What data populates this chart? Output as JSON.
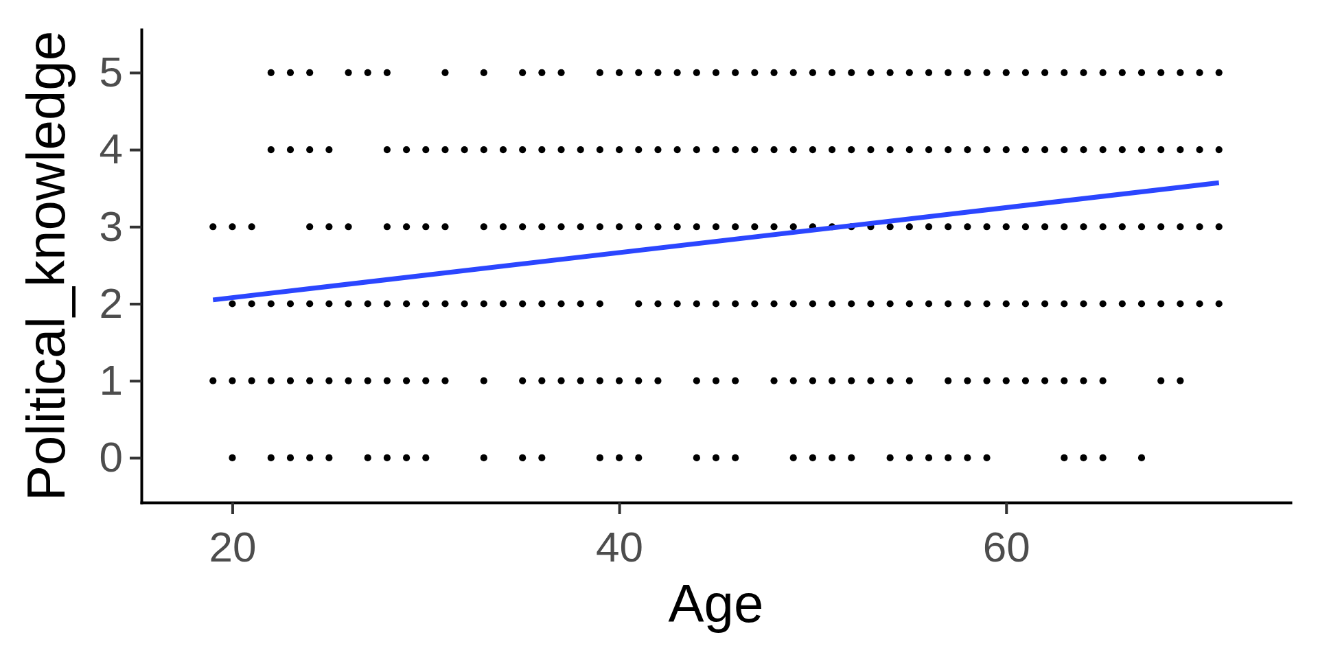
{
  "chart_data": {
    "type": "scatter",
    "xlabel": "Age",
    "ylabel": "Political_knowledge",
    "xlim": [
      15.3,
      74.7
    ],
    "ylim": [
      -0.58,
      5.56
    ],
    "xticks": [
      20,
      40,
      60
    ],
    "yticks": [
      0,
      1,
      2,
      3,
      4,
      5
    ],
    "series": [
      {
        "color": "#000000",
        "marker": "circle",
        "x": [
          22,
          23,
          24,
          26,
          27,
          28,
          31,
          33,
          35,
          36,
          37,
          39,
          40,
          41,
          42,
          43,
          44,
          45,
          46,
          47,
          48,
          49,
          50,
          51,
          52,
          53,
          54,
          55,
          56,
          57,
          58,
          59,
          60,
          61,
          62,
          63,
          64,
          65,
          66,
          67,
          68,
          69,
          70,
          71,
          22,
          23,
          24,
          25,
          28,
          29,
          30,
          31,
          32,
          33,
          34,
          35,
          36,
          37,
          38,
          39,
          40,
          41,
          42,
          43,
          44,
          45,
          46,
          47,
          48,
          49,
          50,
          51,
          52,
          53,
          54,
          55,
          56,
          57,
          58,
          59,
          60,
          61,
          62,
          63,
          64,
          65,
          66,
          67,
          68,
          69,
          70,
          71,
          19,
          20,
          21,
          24,
          25,
          26,
          28,
          29,
          30,
          31,
          33,
          34,
          35,
          36,
          37,
          38,
          39,
          40,
          41,
          42,
          43,
          44,
          45,
          46,
          47,
          48,
          49,
          50,
          51,
          52,
          53,
          54,
          55,
          56,
          57,
          58,
          59,
          60,
          61,
          62,
          63,
          64,
          65,
          66,
          67,
          68,
          69,
          70,
          71,
          20,
          21,
          22,
          23,
          24,
          25,
          26,
          27,
          28,
          29,
          30,
          31,
          32,
          33,
          34,
          35,
          36,
          37,
          38,
          39,
          41,
          42,
          43,
          44,
          45,
          46,
          47,
          48,
          49,
          50,
          51,
          52,
          53,
          54,
          55,
          56,
          57,
          58,
          59,
          60,
          61,
          62,
          63,
          64,
          65,
          66,
          67,
          68,
          69,
          70,
          71,
          19,
          20,
          21,
          22,
          23,
          24,
          25,
          26,
          27,
          28,
          29,
          30,
          31,
          33,
          35,
          36,
          37,
          38,
          39,
          40,
          41,
          42,
          44,
          45,
          46,
          48,
          49,
          50,
          51,
          52,
          53,
          54,
          55,
          57,
          58,
          59,
          60,
          61,
          62,
          63,
          64,
          65,
          68,
          69,
          20,
          22,
          23,
          24,
          25,
          27,
          28,
          29,
          30,
          33,
          35,
          36,
          39,
          40,
          41,
          44,
          45,
          46,
          49,
          50,
          51,
          52,
          54,
          55,
          56,
          57,
          58,
          59,
          63,
          64,
          65,
          67
        ],
        "values": [
          5,
          5,
          5,
          5,
          5,
          5,
          5,
          5,
          5,
          5,
          5,
          5,
          5,
          5,
          5,
          5,
          5,
          5,
          5,
          5,
          5,
          5,
          5,
          5,
          5,
          5,
          5,
          5,
          5,
          5,
          5,
          5,
          5,
          5,
          5,
          5,
          5,
          5,
          5,
          5,
          5,
          5,
          5,
          5,
          4,
          4,
          4,
          4,
          4,
          4,
          4,
          4,
          4,
          4,
          4,
          4,
          4,
          4,
          4,
          4,
          4,
          4,
          4,
          4,
          4,
          4,
          4,
          4,
          4,
          4,
          4,
          4,
          4,
          4,
          4,
          4,
          4,
          4,
          4,
          4,
          4,
          4,
          4,
          4,
          4,
          4,
          4,
          4,
          4,
          4,
          4,
          4,
          3,
          3,
          3,
          3,
          3,
          3,
          3,
          3,
          3,
          3,
          3,
          3,
          3,
          3,
          3,
          3,
          3,
          3,
          3,
          3,
          3,
          3,
          3,
          3,
          3,
          3,
          3,
          3,
          3,
          3,
          3,
          3,
          3,
          3,
          3,
          3,
          3,
          3,
          3,
          3,
          3,
          3,
          3,
          3,
          3,
          3,
          3,
          3,
          3,
          2,
          2,
          2,
          2,
          2,
          2,
          2,
          2,
          2,
          2,
          2,
          2,
          2,
          2,
          2,
          2,
          2,
          2,
          2,
          2,
          2,
          2,
          2,
          2,
          2,
          2,
          2,
          2,
          2,
          2,
          2,
          2,
          2,
          2,
          2,
          2,
          2,
          2,
          2,
          2,
          2,
          2,
          2,
          2,
          2,
          2,
          2,
          2,
          2,
          2,
          2,
          1,
          1,
          1,
          1,
          1,
          1,
          1,
          1,
          1,
          1,
          1,
          1,
          1,
          1,
          1,
          1,
          1,
          1,
          1,
          1,
          1,
          1,
          1,
          1,
          1,
          1,
          1,
          1,
          1,
          1,
          1,
          1,
          1,
          1,
          1,
          1,
          1,
          1,
          1,
          1,
          1,
          1,
          1,
          1,
          0,
          0,
          0,
          0,
          0,
          0,
          0,
          0,
          0,
          0,
          0,
          0,
          0,
          0,
          0,
          0,
          0,
          0,
          0,
          0,
          0,
          0,
          0,
          0,
          0,
          0,
          0,
          0,
          0,
          0,
          0,
          0
        ]
      },
      {
        "type": "line",
        "color": "#2b46ff",
        "x": [
          19,
          71
        ],
        "values": [
          2.05,
          3.57
        ]
      }
    ]
  }
}
